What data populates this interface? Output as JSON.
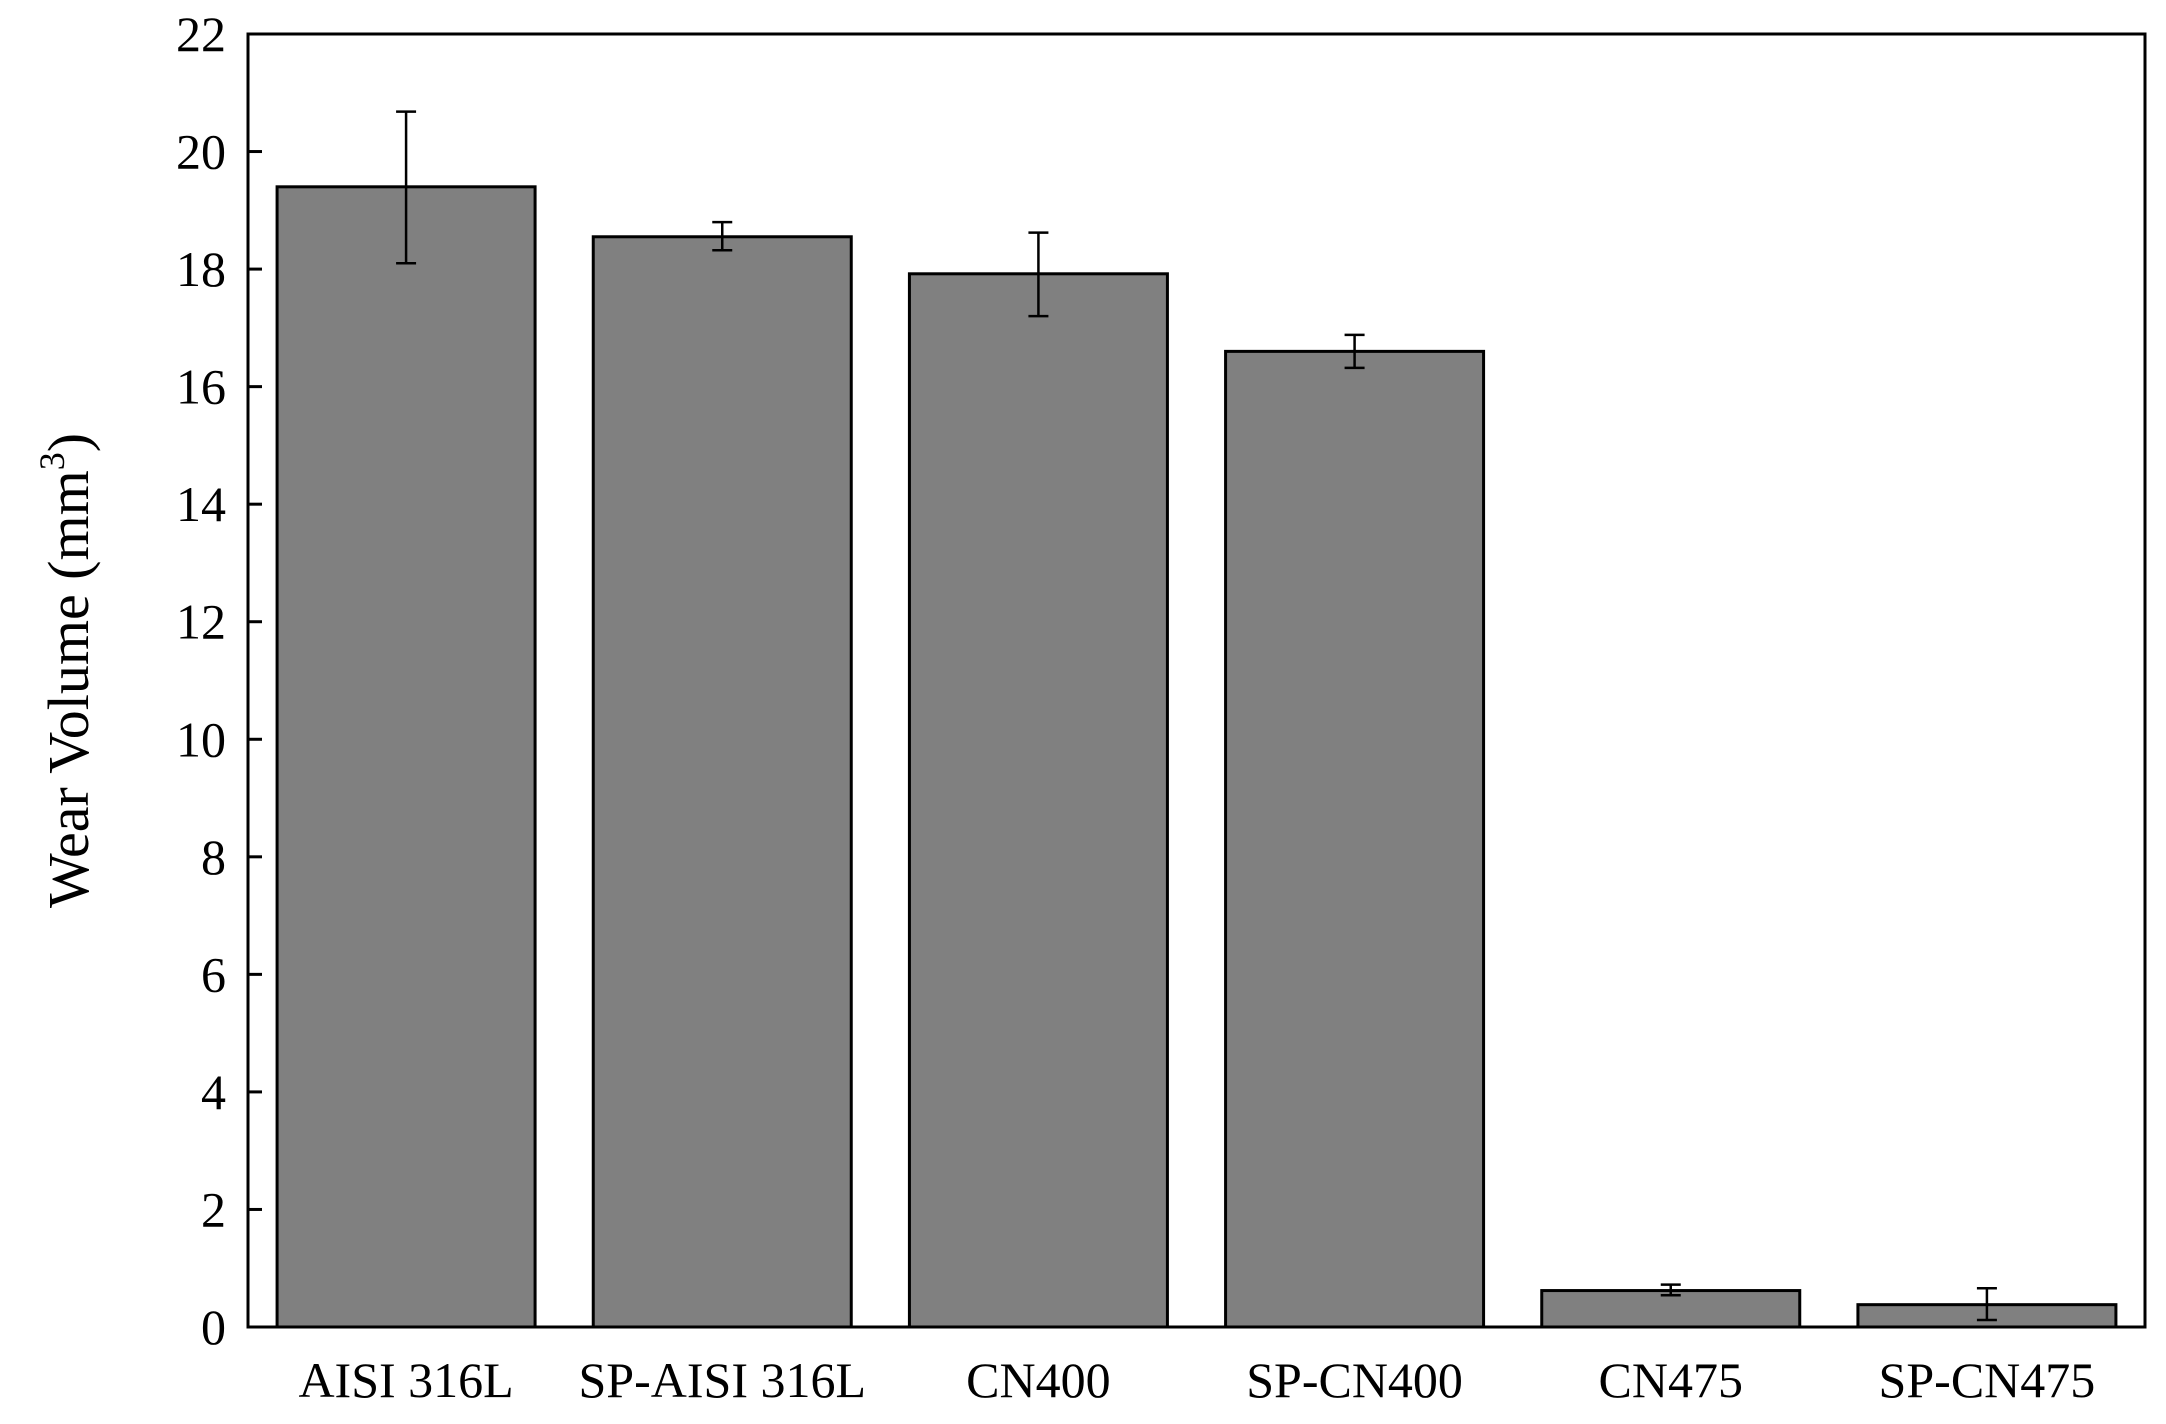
{
  "chart_data": {
    "type": "bar",
    "categories": [
      "AISI 316L",
      "SP-AISI 316L",
      "CN400",
      "SP-CN400",
      "CN475",
      "SP-CN475"
    ],
    "values": [
      19.4,
      18.55,
      17.92,
      16.6,
      0.62,
      0.38
    ],
    "error_low": [
      18.1,
      18.32,
      17.2,
      16.32,
      0.54,
      0.12
    ],
    "error_high": [
      20.68,
      18.8,
      18.62,
      16.88,
      0.72,
      0.66
    ],
    "ylabel": "Wear Volume (mm",
    "ylabel_superscript": "3",
    "ylabel_suffix": ")",
    "ylim": [
      0,
      22
    ],
    "yticks": [
      0,
      2,
      4,
      6,
      8,
      10,
      12,
      14,
      16,
      18,
      20,
      22
    ],
    "ytick_labels": [
      "0",
      "2",
      "4",
      "6",
      "8",
      "10",
      "12",
      "14",
      "16",
      "18",
      "20",
      "22"
    ],
    "grid": false,
    "legend": "none",
    "colors": {
      "bar_fill": "#808080",
      "bar_stroke": "#000000",
      "axis": "#000000",
      "error_bar": "#000000"
    }
  }
}
